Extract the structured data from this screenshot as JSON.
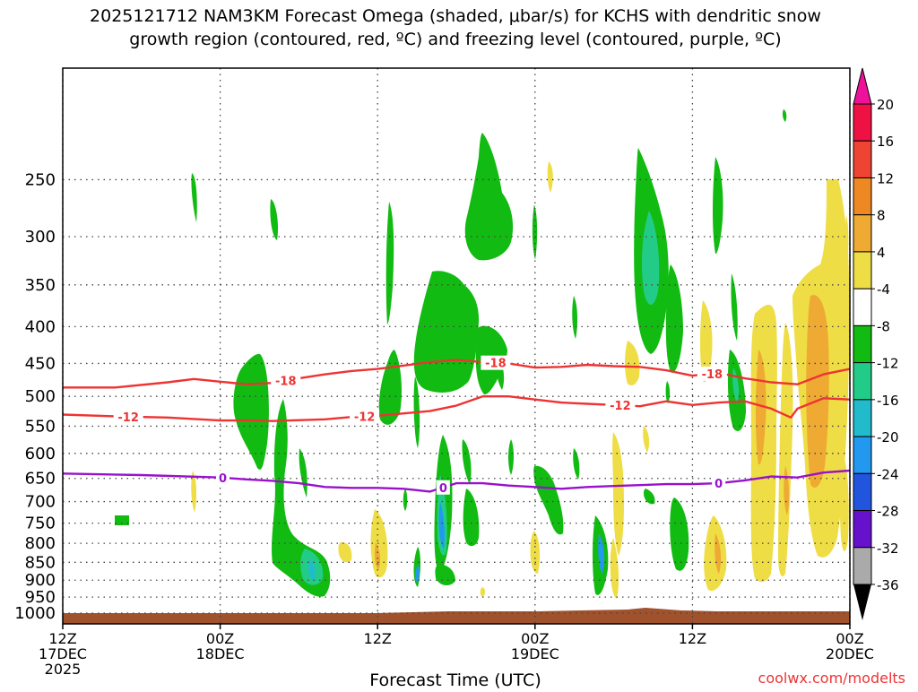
{
  "title_line1": "2025121712 NAM3KM Forecast Omega (shaded, μbar/s) for KCHS with dendritic snow",
  "title_line2": "growth region (contoured, red, ºC) and freezing level (contoured, purple, ºC)",
  "xlabel": "Forecast Time (UTC)",
  "credit": "coolwx.com/modelts",
  "chart_data": {
    "type": "heatmap",
    "title": "2025121712 NAM3KM Forecast Omega (shaded, μbar/s) for KCHS with dendritic snow growth region (contoured, red, ºC) and freezing level (contoured, purple, ºC)",
    "xlabel": "Forecast Time (UTC)",
    "ylabel": "",
    "x_ticks": [
      {
        "hour": 0,
        "l1": "12Z",
        "l2": "17DEC",
        "l3": "2025"
      },
      {
        "hour": 12,
        "l1": "00Z",
        "l2": "18DEC",
        "l3": ""
      },
      {
        "hour": 24,
        "l1": "12Z",
        "l2": "",
        "l3": ""
      },
      {
        "hour": 36,
        "l1": "00Z",
        "l2": "19DEC",
        "l3": ""
      },
      {
        "hour": 48,
        "l1": "12Z",
        "l2": "",
        "l3": ""
      },
      {
        "hour": 60,
        "l1": "00Z",
        "l2": "20DEC",
        "l3": ""
      }
    ],
    "y_ticks": [
      250,
      300,
      350,
      400,
      450,
      500,
      550,
      600,
      650,
      700,
      750,
      800,
      850,
      900,
      950,
      1000
    ],
    "xlim_hours": [
      0,
      60
    ],
    "ylim_hPa": [
      175,
      1035
    ],
    "y_scale": "log-pressure (inverted)",
    "colorbar": {
      "labels": [
        20,
        16,
        12,
        8,
        4,
        -4,
        -8,
        -12,
        -16,
        -20,
        -24,
        -28,
        -32,
        -36
      ],
      "colors": [
        "#ee1144",
        "#ee4433",
        "#ee8822",
        "#eeaa33",
        "#eedd44",
        "#ffffff",
        "#11bb11",
        "#22cc88",
        "#22bbcc",
        "#2299ee",
        "#2255dd",
        "#6611cc",
        "#aa11cc",
        "#aaaaaa"
      ],
      "top_arrow_color": "#ee1199",
      "bottom_arrow_color": "#000000"
    },
    "series": [
      {
        "name": "-18",
        "color": "#ee3333",
        "points": [
          [
            0,
            486
          ],
          [
            4,
            486
          ],
          [
            8,
            478
          ],
          [
            10,
            473
          ],
          [
            12,
            477
          ],
          [
            14,
            481
          ],
          [
            16,
            479
          ],
          [
            18,
            472
          ],
          [
            20,
            466
          ],
          [
            22,
            461
          ],
          [
            24,
            458
          ],
          [
            26,
            453
          ],
          [
            28,
            448
          ],
          [
            30,
            445
          ],
          [
            32,
            448
          ],
          [
            34,
            450
          ],
          [
            36,
            456
          ],
          [
            38,
            455
          ],
          [
            40,
            452
          ],
          [
            42,
            454
          ],
          [
            44,
            455
          ],
          [
            46,
            460
          ],
          [
            48,
            468
          ],
          [
            50,
            464
          ],
          [
            52,
            472
          ],
          [
            54,
            478
          ],
          [
            56,
            481
          ],
          [
            58,
            466
          ],
          [
            60,
            458
          ]
        ],
        "label_hours": [
          17,
          33,
          49.5
        ]
      },
      {
        "name": "-12",
        "color": "#ee3333",
        "points": [
          [
            0,
            530
          ],
          [
            4,
            533
          ],
          [
            8,
            535
          ],
          [
            12,
            540
          ],
          [
            14,
            540
          ],
          [
            16,
            541
          ],
          [
            20,
            538
          ],
          [
            22,
            534
          ],
          [
            24,
            532
          ],
          [
            26,
            528
          ],
          [
            28,
            524
          ],
          [
            30,
            515
          ],
          [
            32,
            500
          ],
          [
            34,
            500
          ],
          [
            36,
            505
          ],
          [
            38,
            510
          ],
          [
            40,
            512
          ],
          [
            42,
            514
          ],
          [
            44,
            516
          ],
          [
            46,
            508
          ],
          [
            48,
            514
          ],
          [
            50,
            510
          ],
          [
            52,
            508
          ],
          [
            54,
            520
          ],
          [
            55.5,
            535
          ],
          [
            56,
            520
          ],
          [
            58,
            503
          ],
          [
            60,
            505
          ]
        ],
        "label_hours": [
          5,
          23,
          42.5
        ]
      },
      {
        "name": "0",
        "color": "#9911cc",
        "points": [
          [
            0,
            640
          ],
          [
            6,
            643
          ],
          [
            12,
            648
          ],
          [
            14,
            652
          ],
          [
            16,
            655
          ],
          [
            18,
            660
          ],
          [
            20,
            668
          ],
          [
            22,
            670
          ],
          [
            24,
            670
          ],
          [
            26,
            672
          ],
          [
            28,
            678
          ],
          [
            30,
            660
          ],
          [
            32,
            660
          ],
          [
            34,
            665
          ],
          [
            36,
            668
          ],
          [
            38,
            672
          ],
          [
            40,
            668
          ],
          [
            42,
            666
          ],
          [
            44,
            664
          ],
          [
            46,
            662
          ],
          [
            48,
            662
          ],
          [
            50,
            660
          ],
          [
            52,
            654
          ],
          [
            54,
            646
          ],
          [
            56,
            648
          ],
          [
            58,
            638
          ],
          [
            60,
            634
          ]
        ],
        "label_hours": [
          12.2,
          29,
          50
        ]
      }
    ]
  }
}
